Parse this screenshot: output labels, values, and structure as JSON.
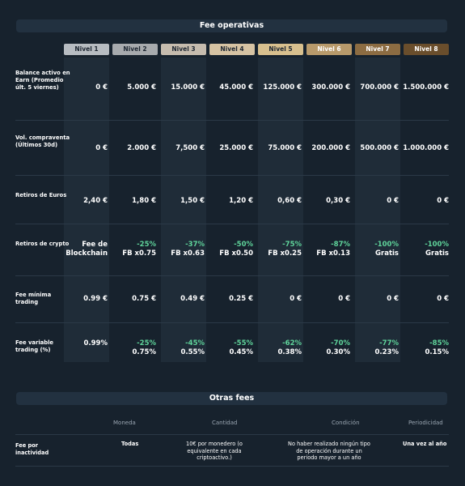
{
  "fee_section": {
    "title": "Fee operativas"
  },
  "levels": [
    {
      "label": "Nivel 1",
      "color": "#b7bcc1"
    },
    {
      "label": "Nivel 2",
      "color": "#a7aaad"
    },
    {
      "label": "Nivel 3",
      "color": "#c6bcae"
    },
    {
      "label": "Nivel 4",
      "color": "#d6c3a3"
    },
    {
      "label": "Nivel 5",
      "color": "#d8c08e"
    },
    {
      "label": "Nivel 6",
      "color": "#b89a6b"
    },
    {
      "label": "Nivel 7",
      "color": "#8c6c42"
    },
    {
      "label": "Nivel 8",
      "color": "#6a4e2c"
    }
  ],
  "rows": [
    {
      "label": "Balance activo en Earn (Promedio últ. 5 viernes)",
      "cells": [
        {
          "main": "0 €"
        },
        {
          "main": "5.000 €"
        },
        {
          "main": "15.000 €"
        },
        {
          "main": "45.000 €"
        },
        {
          "main": "125.000 €"
        },
        {
          "main": "300.000 €"
        },
        {
          "main": "700.000 €"
        },
        {
          "main": "1.500.000 €"
        }
      ]
    },
    {
      "label": "Vol. compraventa (Últimos 30d)",
      "cells": [
        {
          "main": "0 €"
        },
        {
          "main": "2.000 €"
        },
        {
          "main": "7,500 €"
        },
        {
          "main": "25.000 €"
        },
        {
          "main": "75.000 €"
        },
        {
          "main": "200.000 €"
        },
        {
          "main": "500.000 €"
        },
        {
          "main": "1.000.000 €"
        }
      ]
    },
    {
      "label": "Retiros de Euros",
      "cells": [
        {
          "main": "2,40 €"
        },
        {
          "main": "1,80 €"
        },
        {
          "main": "1,50 €"
        },
        {
          "main": "1,20 €"
        },
        {
          "main": "0,60 €"
        },
        {
          "main": "0,30 €"
        },
        {
          "main": "0 €"
        },
        {
          "main": "0 €"
        }
      ]
    },
    {
      "label": "Retiros de crypto",
      "cells": [
        {
          "pct": "",
          "main": "Fee de",
          "sub": "Blockchain",
          "first": true
        },
        {
          "pct": "-25%",
          "sub": "FB x0.75"
        },
        {
          "pct": "-37%",
          "sub": "FB x0.63"
        },
        {
          "pct": "-50%",
          "sub": "FB x0.50"
        },
        {
          "pct": "-75%",
          "sub": "FB x0.25"
        },
        {
          "pct": "-87%",
          "sub": "FB x0.13"
        },
        {
          "pct": "-100%",
          "sub": "Gratis"
        },
        {
          "pct": "-100%",
          "sub": "Gratis"
        }
      ]
    },
    {
      "label": "Fee mínima trading",
      "cells": [
        {
          "main": "0.99 €"
        },
        {
          "main": "0.75 €"
        },
        {
          "main": "0.49 €"
        },
        {
          "main": "0.25 €"
        },
        {
          "main": "0 €"
        },
        {
          "main": "0 €"
        },
        {
          "main": "0 €"
        },
        {
          "main": "0 €"
        }
      ]
    },
    {
      "label": "Fee variable trading (%)",
      "cells": [
        {
          "main": "0.99%"
        },
        {
          "pct": "-25%",
          "sub": "0.75%"
        },
        {
          "pct": "-45%",
          "sub": "0.55%"
        },
        {
          "pct": "-55%",
          "sub": "0.45%"
        },
        {
          "pct": "-62%",
          "sub": "0.38%"
        },
        {
          "pct": "-70%",
          "sub": "0.30%"
        },
        {
          "pct": "-77%",
          "sub": "0.23%"
        },
        {
          "pct": "-85%",
          "sub": "0.15%"
        }
      ]
    }
  ],
  "other_section": {
    "title": "Otras fees",
    "headers": {
      "moneda": "Moneda",
      "cantidad": "Cantidad",
      "condicion": "Condición",
      "periodicidad": "Periodicidad"
    },
    "row": {
      "label": "Fee por inactividad",
      "moneda": "Todas",
      "cantidad": "10€ por monedero (o equivalente en cada criptoactivo.)",
      "condicion": "No haber realizado ningún tipo de operación durante un periodo mayor a un año",
      "periodicidad": "Una vez al año"
    }
  },
  "colors": {
    "background": "#17222d",
    "stripe": "#1f2c38",
    "positive": "#5fd39a"
  }
}
